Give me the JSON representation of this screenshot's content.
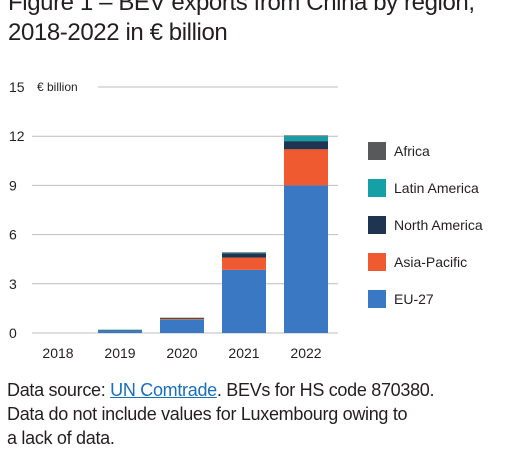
{
  "title_lines": [
    "Figure 1 – BEV exports from China by region,",
    "2018-2022 in € billion"
  ],
  "source": {
    "prefix": "Data source: ",
    "link_text": "UN Comtrade",
    "suffix": ". BEVs for HS code 870380.",
    "line2": "Data do not include values for Luxembourg owing to",
    "line3": "a lack of data."
  },
  "chart_data": {
    "type": "bar",
    "stacked": true,
    "categories": [
      "2018",
      "2019",
      "2020",
      "2021",
      "2022"
    ],
    "unit_label": "€ billion",
    "ylim": [
      0,
      15
    ],
    "yticks": [
      0,
      3,
      6,
      9,
      12,
      15
    ],
    "grid": true,
    "legend_position": "right",
    "series": [
      {
        "name": "EU-27",
        "color": "#3a78c3",
        "values": [
          0.0,
          0.15,
          0.8,
          3.85,
          9.0
        ]
      },
      {
        "name": "Asia-Pacific",
        "color": "#f05a30",
        "values": [
          0.0,
          0.03,
          0.05,
          0.75,
          2.2
        ]
      },
      {
        "name": "North America",
        "color": "#1e3451",
        "values": [
          0.0,
          0.01,
          0.05,
          0.25,
          0.5
        ]
      },
      {
        "name": "Latin America",
        "color": "#14a0a5",
        "values": [
          0.0,
          0.01,
          0.02,
          0.05,
          0.3
        ]
      },
      {
        "name": "Africa",
        "color": "#58595b",
        "values": [
          0.0,
          0.0,
          0.01,
          0.02,
          0.05
        ]
      }
    ]
  }
}
